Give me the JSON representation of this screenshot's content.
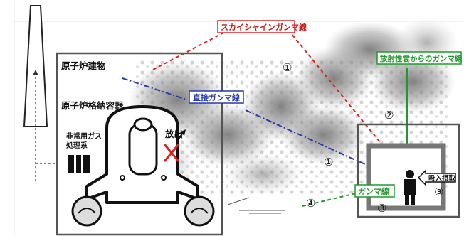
{
  "labels": {
    "reactor_building": "原子炉建物",
    "containment_vessel": "原子炉格納容器",
    "emergency_gas_line1": "非常用ガス",
    "emergency_gas_line2": "処理系",
    "release": "放出",
    "skyshine": "スカイシャインガンマ線",
    "direct_gamma": "直接ガンマ線",
    "cloud_gamma": "放射性雲からのガンマ線",
    "inhalation": "吸入摂取",
    "gamma_ray": "ガンマ線"
  },
  "markers": {
    "m1_top": "①",
    "m1_mid": "①",
    "m2": "②",
    "m3_right": "③",
    "m3_bottom": "③",
    "m4": "④"
  },
  "colors": {
    "skyshine_red": "#e02020",
    "direct_blue": "#2a3aa8",
    "cloud_green": "#1f9a2a",
    "release_x": "#e02020"
  }
}
